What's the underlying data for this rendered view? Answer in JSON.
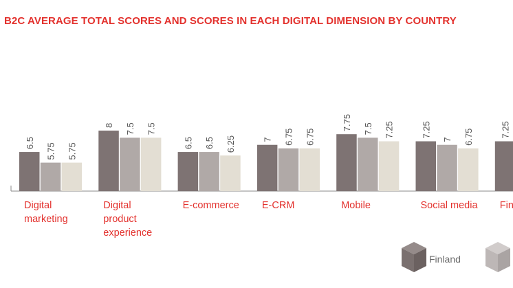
{
  "colors": {
    "title": "#e3312d",
    "category_label": "#e3312d",
    "value_label": "#555555",
    "axis": "#888888",
    "series": [
      "#7e7373",
      "#b0a9a7",
      "#e3ded3"
    ]
  },
  "chart_data": {
    "type": "bar",
    "title": "B2C AVERAGE TOTAL SCORES AND SCORES IN EACH DIGITAL DIMENSION BY COUNTRY",
    "xlabel": "",
    "ylabel": "",
    "categories": [
      [
        "Digital",
        "marketing"
      ],
      [
        "Digital",
        "product",
        "experience"
      ],
      [
        "E-commerce"
      ],
      [
        "E-CRM"
      ],
      [
        "Mobile"
      ],
      [
        "Social media"
      ],
      [
        "Fin"
      ]
    ],
    "series": [
      {
        "name": "Finland",
        "values": [
          6.5,
          8,
          6.5,
          7,
          7.75,
          7.25,
          7.25
        ]
      },
      {
        "values": [
          5.75,
          7.5,
          6.5,
          6.75,
          7.5,
          7,
          null
        ]
      },
      {
        "values": [
          5.75,
          7.5,
          6.25,
          6.75,
          7.25,
          6.75,
          null
        ]
      }
    ],
    "value_labels": [
      [
        "6.5",
        "8",
        "6.5",
        "7",
        "7.75",
        "7.25",
        "7.25"
      ],
      [
        "5.75",
        "7.5",
        "6.5",
        "6.75",
        "7.5",
        "7",
        ""
      ],
      [
        "5.75",
        "7.5",
        "6.25",
        "6.75",
        "7.25",
        "6.75",
        ""
      ]
    ],
    "grid": false,
    "legend_position": "bottom-right"
  },
  "legend": {
    "items": [
      {
        "label": "Finland",
        "icon": "cube-icon"
      },
      {
        "label": "",
        "icon": "cube-icon"
      }
    ]
  }
}
